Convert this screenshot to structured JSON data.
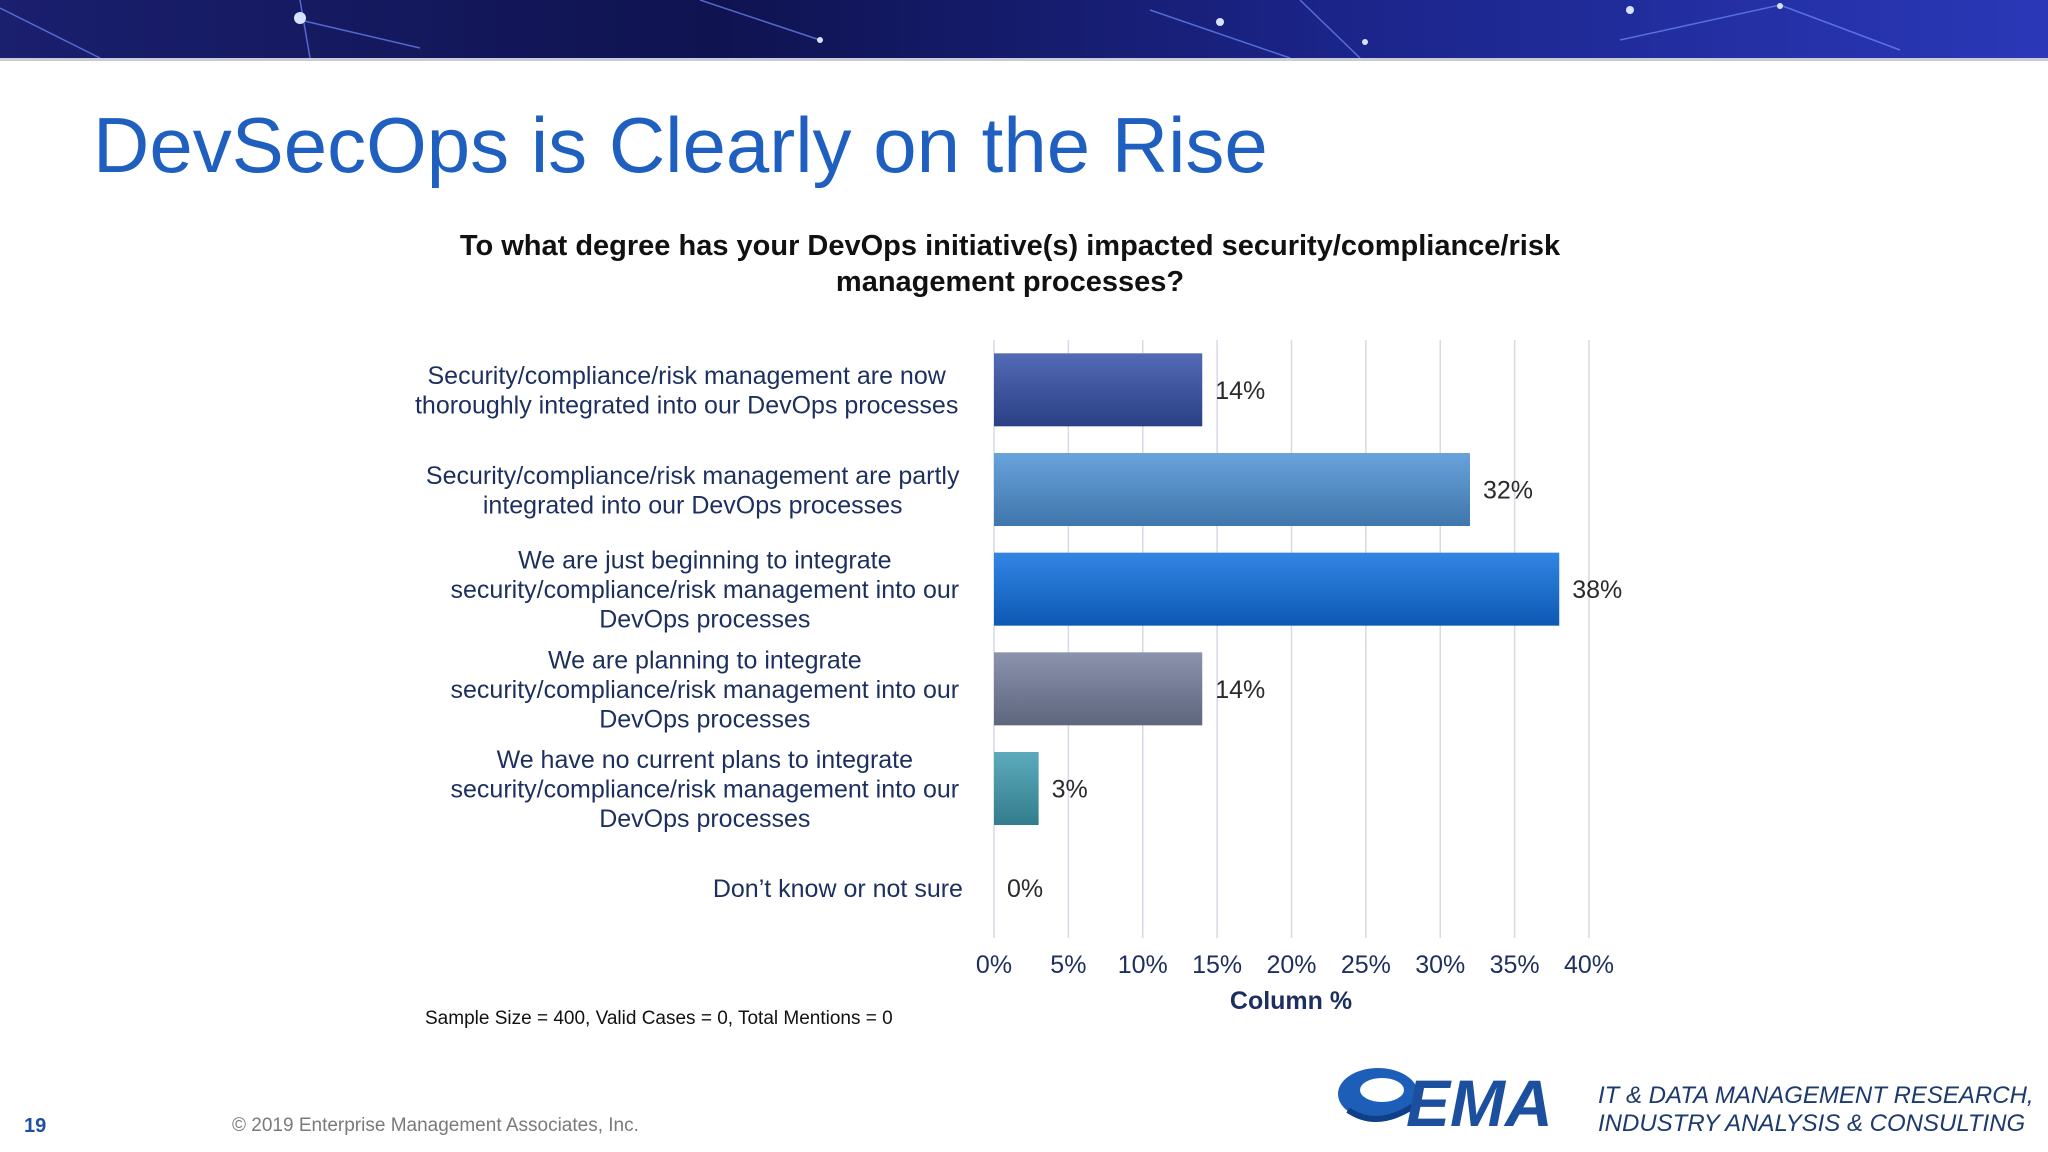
{
  "slide": {
    "title": "DevSecOps is Clearly on the Rise",
    "sample_note": "Sample Size = 400, Valid Cases = 0, Total Mentions = 0",
    "page_number": "19",
    "copyright": "© 2019 Enterprise Management Associates, Inc.",
    "logo_text": "EMA",
    "tagline_lines": [
      "IT & DATA MANAGEMENT RESEARCH,",
      "INDUSTRY ANALYSIS & CONSULTING"
    ]
  },
  "chart_data": {
    "type": "bar",
    "orientation": "horizontal",
    "title": "To what degree has your DevOps initiative(s) impacted security/compliance/risk management processes?",
    "xlabel": "Column %",
    "ylabel": "",
    "xlim": [
      0,
      40
    ],
    "x_ticks": [
      "0%",
      "5%",
      "10%",
      "15%",
      "20%",
      "25%",
      "30%",
      "35%",
      "40%"
    ],
    "grid": true,
    "categories": [
      [
        "Security/compliance/risk management are now",
        "thoroughly integrated into our DevOps processes"
      ],
      [
        "Security/compliance/risk management are partly",
        "integrated into our DevOps processes"
      ],
      [
        "We are just beginning to integrate",
        "security/compliance/risk management into our",
        "DevOps processes"
      ],
      [
        "We are planning to integrate",
        "security/compliance/risk management into our",
        "DevOps processes"
      ],
      [
        "We have no current plans to integrate",
        "security/compliance/risk management into our",
        "DevOps processes"
      ],
      [
        "Don’t know or not sure"
      ]
    ],
    "values": [
      14,
      32,
      38,
      14,
      3,
      0
    ],
    "value_labels": [
      "14%",
      "32%",
      "38%",
      "14%",
      "3%",
      "0%"
    ],
    "colors": [
      "#3550a8",
      "#4f93d6",
      "#0f6fe0",
      "#76809e",
      "#3f9cb0",
      "#999999"
    ]
  }
}
